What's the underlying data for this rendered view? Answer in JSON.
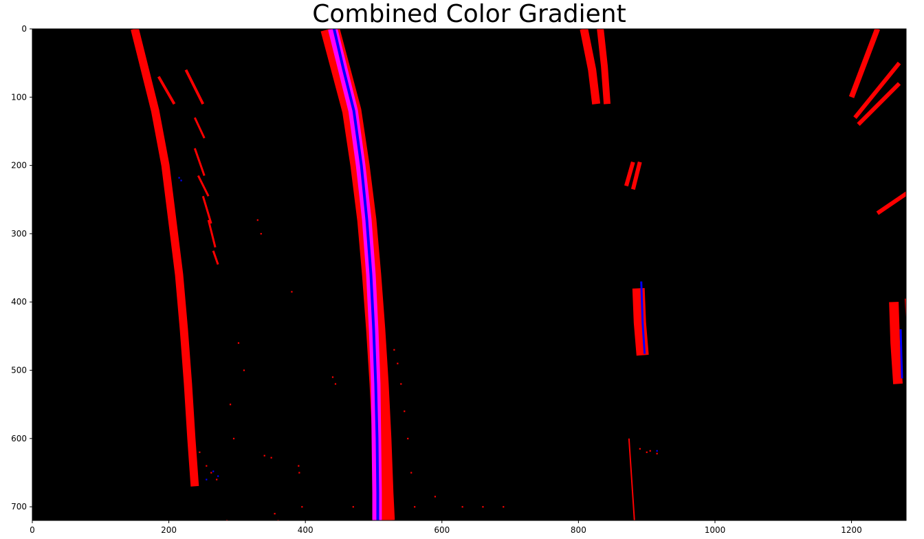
{
  "chart_data": {
    "type": "image",
    "title": "Combined Color Gradient",
    "xlabel": "",
    "ylabel": "",
    "xlim": [
      0,
      1280
    ],
    "ylim": [
      720,
      0
    ],
    "x_ticks": [
      0,
      200,
      400,
      600,
      800,
      1000,
      1200
    ],
    "y_ticks": [
      0,
      100,
      200,
      300,
      400,
      500,
      600,
      700
    ],
    "background_color": "#000000",
    "colors": {
      "red": "#ff0000",
      "magenta": "#ff00ff",
      "blue": "#0000ff"
    },
    "strokes": [
      {
        "name": "left-lane-main",
        "color": "red",
        "points": [
          [
            150,
            0
          ],
          [
            165,
            60
          ],
          [
            180,
            120
          ],
          [
            195,
            200
          ],
          [
            205,
            280
          ],
          [
            215,
            360
          ],
          [
            222,
            440
          ],
          [
            228,
            520
          ],
          [
            233,
            600
          ],
          [
            238,
            670
          ]
        ],
        "width": 12
      },
      {
        "name": "left-lane-fragment-1",
        "color": "red",
        "points": [
          [
            185,
            70
          ],
          [
            208,
            110
          ]
        ],
        "width": 4
      },
      {
        "name": "left-lane-fragment-2",
        "color": "red",
        "points": [
          [
            225,
            60
          ],
          [
            250,
            110
          ]
        ],
        "width": 4
      },
      {
        "name": "left-lane-fragment-3",
        "color": "red",
        "points": [
          [
            238,
            130
          ],
          [
            252,
            160
          ]
        ],
        "width": 3
      },
      {
        "name": "left-lane-fragment-4",
        "color": "red",
        "points": [
          [
            238,
            175
          ],
          [
            252,
            215
          ]
        ],
        "width": 3
      },
      {
        "name": "left-lane-fragment-5",
        "color": "red",
        "points": [
          [
            243,
            215
          ],
          [
            258,
            245
          ]
        ],
        "width": 3
      },
      {
        "name": "left-lane-fragment-6",
        "color": "red",
        "points": [
          [
            250,
            245
          ],
          [
            262,
            285
          ]
        ],
        "width": 3
      },
      {
        "name": "left-lane-fragment-7",
        "color": "red",
        "points": [
          [
            258,
            280
          ],
          [
            268,
            320
          ]
        ],
        "width": 3
      },
      {
        "name": "left-lane-fragment-8",
        "color": "red",
        "points": [
          [
            265,
            325
          ],
          [
            272,
            345
          ]
        ],
        "width": 3
      },
      {
        "name": "center-lane-outer",
        "color": "red",
        "points": [
          [
            436,
            0
          ],
          [
            452,
            60
          ],
          [
            468,
            120
          ],
          [
            480,
            200
          ],
          [
            490,
            280
          ],
          [
            497,
            360
          ],
          [
            503,
            440
          ],
          [
            508,
            520
          ],
          [
            512,
            600
          ],
          [
            515,
            680
          ],
          [
            517,
            720
          ]
        ],
        "width": 28
      },
      {
        "name": "center-lane-outer-edge",
        "color": "red",
        "points": [
          [
            456,
            60
          ],
          [
            470,
            90
          ]
        ],
        "width": 6
      },
      {
        "name": "center-lane-magenta",
        "color": "magenta",
        "points": [
          [
            440,
            0
          ],
          [
            455,
            60
          ],
          [
            470,
            120
          ],
          [
            481,
            200
          ],
          [
            490,
            280
          ],
          [
            496,
            360
          ],
          [
            500,
            440
          ],
          [
            503,
            520
          ],
          [
            504,
            600
          ],
          [
            505,
            680
          ],
          [
            505,
            720
          ]
        ],
        "width": 14
      },
      {
        "name": "center-lane-blue",
        "color": "blue",
        "points": [
          [
            442,
            0
          ],
          [
            456,
            60
          ],
          [
            471,
            120
          ],
          [
            482,
            200
          ],
          [
            490,
            280
          ],
          [
            496,
            360
          ],
          [
            500,
            440
          ],
          [
            503,
            520
          ],
          [
            505,
            600
          ],
          [
            506,
            680
          ],
          [
            506,
            720
          ]
        ],
        "width": 4
      },
      {
        "name": "right-dash-top-a",
        "color": "red",
        "points": [
          [
            808,
            0
          ],
          [
            820,
            60
          ],
          [
            826,
            110
          ]
        ],
        "width": 12
      },
      {
        "name": "right-dash-top-b",
        "color": "red",
        "points": [
          [
            832,
            0
          ],
          [
            838,
            55
          ],
          [
            842,
            110
          ]
        ],
        "width": 10
      },
      {
        "name": "right-dash-mid-a",
        "color": "red",
        "points": [
          [
            870,
            230
          ],
          [
            880,
            195
          ]
        ],
        "width": 6
      },
      {
        "name": "right-dash-mid-b",
        "color": "red",
        "points": [
          [
            880,
            235
          ],
          [
            890,
            195
          ]
        ],
        "width": 6
      },
      {
        "name": "right-dash-low-red",
        "color": "red",
        "points": [
          [
            888,
            380
          ],
          [
            890,
            430
          ],
          [
            894,
            478
          ]
        ],
        "width": 18
      },
      {
        "name": "right-dash-low-blue",
        "color": "blue",
        "points": [
          [
            892,
            370
          ],
          [
            894,
            430
          ],
          [
            897,
            476
          ]
        ],
        "width": 3
      },
      {
        "name": "right-speck-line",
        "color": "red",
        "points": [
          [
            874,
            600
          ],
          [
            878,
            660
          ],
          [
            882,
            720
          ]
        ],
        "width": 2
      },
      {
        "name": "far-right-top-a",
        "color": "red",
        "points": [
          [
            1200,
            100
          ],
          [
            1238,
            0
          ]
        ],
        "width": 8
      },
      {
        "name": "far-right-top-b",
        "color": "red",
        "points": [
          [
            1205,
            130
          ],
          [
            1270,
            50
          ]
        ],
        "width": 6
      },
      {
        "name": "far-right-top-c",
        "color": "red",
        "points": [
          [
            1210,
            140
          ],
          [
            1270,
            80
          ]
        ],
        "width": 6
      },
      {
        "name": "far-right-mid",
        "color": "red",
        "points": [
          [
            1238,
            270
          ],
          [
            1285,
            238
          ]
        ],
        "width": 6
      },
      {
        "name": "far-right-low-a",
        "color": "red",
        "points": [
          [
            1262,
            400
          ],
          [
            1264,
            460
          ],
          [
            1268,
            520
          ]
        ],
        "width": 14
      },
      {
        "name": "far-right-low-b",
        "color": "red",
        "points": [
          [
            1283,
            395
          ],
          [
            1286,
            450
          ],
          [
            1290,
            510
          ]
        ],
        "width": 10
      },
      {
        "name": "far-right-low-blue",
        "color": "blue",
        "points": [
          [
            1272,
            440
          ],
          [
            1273,
            480
          ],
          [
            1274,
            512
          ]
        ],
        "width": 3
      }
    ],
    "specks": [
      {
        "color": "red",
        "points": [
          [
            330,
            280
          ],
          [
            335,
            300
          ],
          [
            380,
            385
          ],
          [
            302,
            460
          ],
          [
            310,
            500
          ],
          [
            440,
            510
          ],
          [
            444,
            520
          ],
          [
            390,
            640
          ],
          [
            391,
            650
          ],
          [
            395,
            700
          ],
          [
            420,
            730
          ],
          [
            590,
            685
          ],
          [
            560,
            700
          ],
          [
            630,
            700
          ],
          [
            660,
            700
          ],
          [
            690,
            700
          ],
          [
            600,
            725
          ],
          [
            285,
            720
          ],
          [
            290,
            550
          ],
          [
            295,
            600
          ],
          [
            355,
            710
          ],
          [
            360,
            720
          ],
          [
            890,
            615
          ],
          [
            900,
            620
          ],
          [
            905,
            618
          ],
          [
            915,
            622
          ],
          [
            255,
            640
          ],
          [
            262,
            650
          ],
          [
            270,
            660
          ],
          [
            245,
            620
          ],
          [
            530,
            470
          ],
          [
            535,
            490
          ],
          [
            540,
            520
          ],
          [
            545,
            560
          ],
          [
            550,
            600
          ],
          [
            555,
            650
          ],
          [
            520,
            690
          ],
          [
            470,
            700
          ],
          [
            340,
            625
          ],
          [
            350,
            628
          ]
        ]
      },
      {
        "color": "blue",
        "points": [
          [
            215,
            218
          ],
          [
            218,
            222
          ],
          [
            255,
            660
          ],
          [
            265,
            648
          ],
          [
            272,
            655
          ],
          [
            915,
            618
          ]
        ]
      }
    ]
  }
}
